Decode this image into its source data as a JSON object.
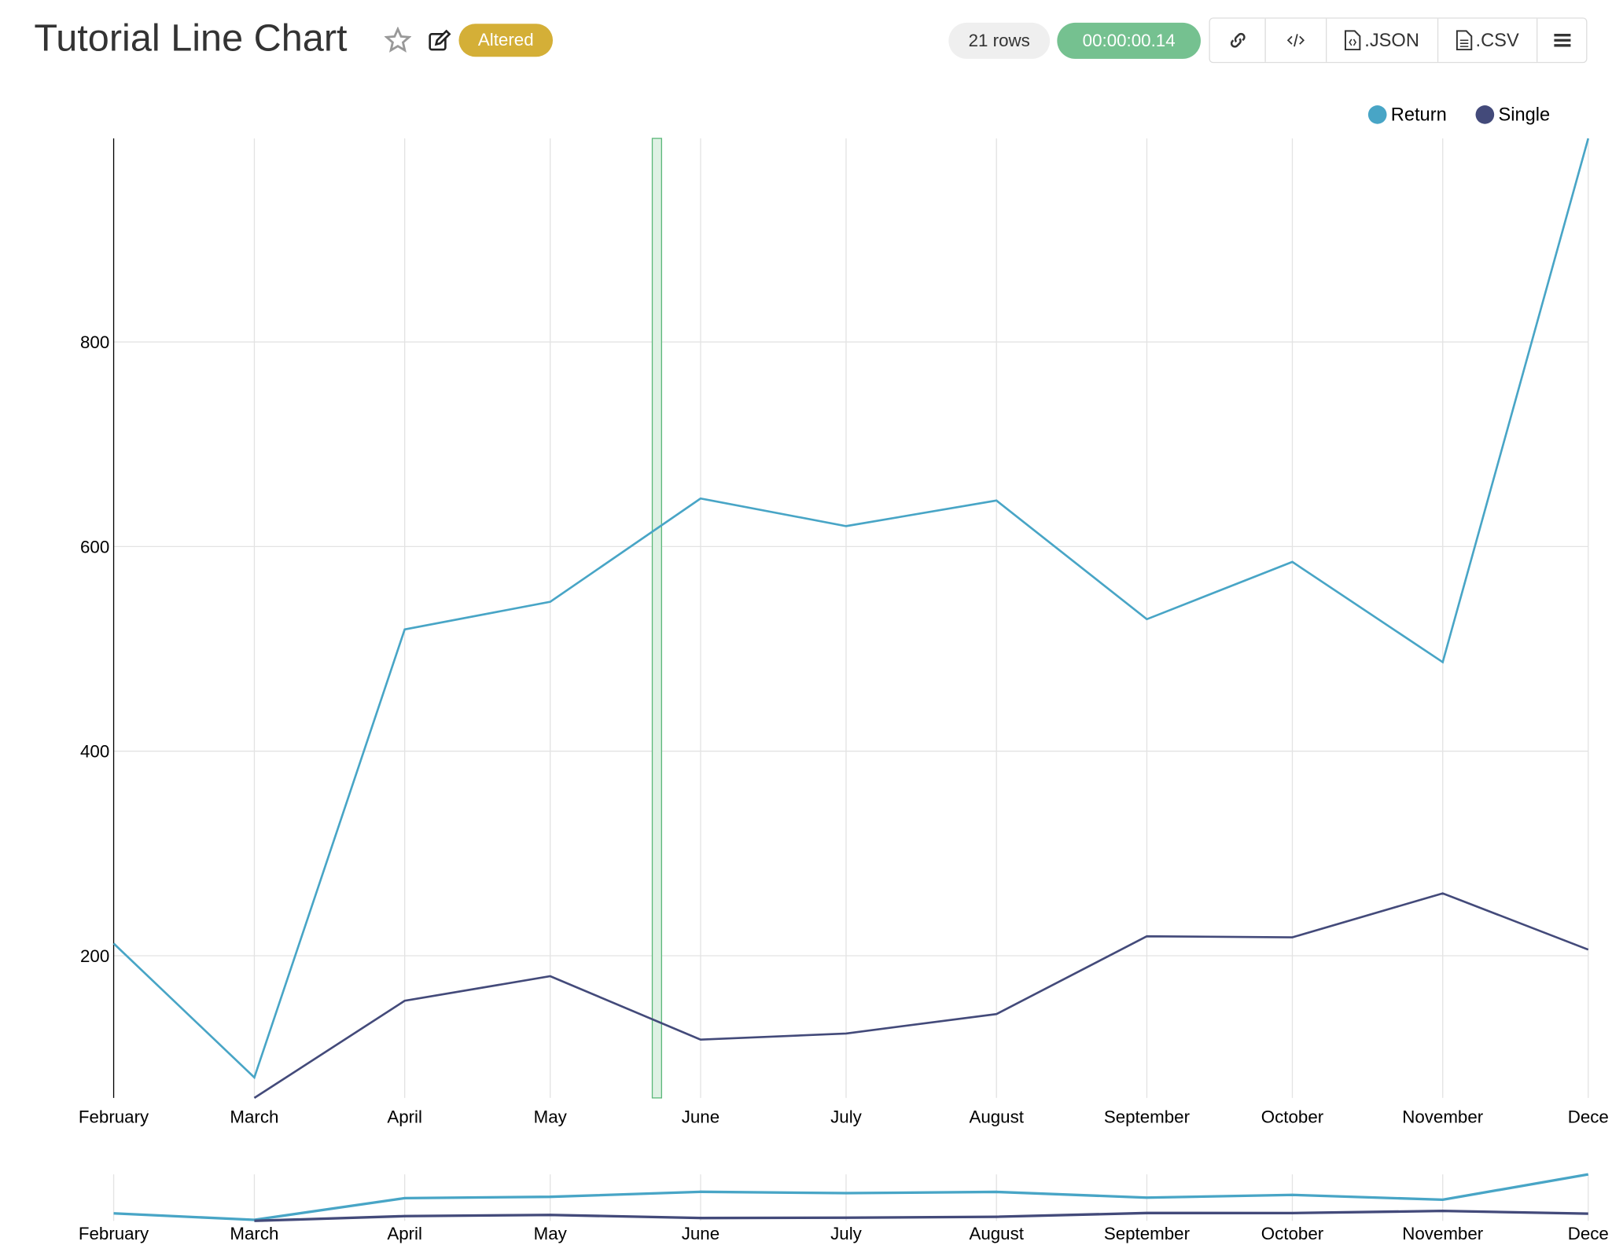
{
  "header": {
    "title": "Tutorial Line Chart",
    "status_badge": "Altered",
    "row_count": "21 rows",
    "query_time": "00:00:00.14",
    "json_label": ".JSON",
    "csv_label": ".CSV",
    "icons": [
      "star-icon",
      "edit-icon",
      "link-icon",
      "code-icon",
      "file-json-icon",
      "file-csv-icon",
      "menu-icon"
    ]
  },
  "colors": {
    "altered": "#d4af37",
    "time": "#75c190",
    "rows": "#efefef",
    "return": "#48a5c6",
    "single": "#434a7a",
    "brush": "#5cb87a"
  },
  "chart_data": {
    "type": "line",
    "x": [
      "February",
      "March",
      "April",
      "May",
      "June",
      "July",
      "August",
      "September",
      "October",
      "November",
      "December"
    ],
    "x_tick_labels": [
      "February",
      "March",
      "April",
      "May",
      "June",
      "July",
      "August",
      "September",
      "October",
      "November",
      "Dece"
    ],
    "x_dates": [
      "2016-02-01",
      "2016-03-01",
      "2016-04-01",
      "2016-05-01",
      "2016-06-01",
      "2016-07-01",
      "2016-08-01",
      "2016-09-01",
      "2016-10-01",
      "2016-11-01",
      "2016-12-01"
    ],
    "series": [
      {
        "name": "Return",
        "values": [
          212,
          81,
          519,
          546,
          647,
          620,
          645,
          529,
          585,
          487,
          999
        ]
      },
      {
        "name": "Single",
        "values": [
          null,
          61,
          156,
          180,
          118,
          124,
          143,
          219,
          218,
          261,
          206
        ]
      }
    ],
    "y_ticks": [
      200,
      400,
      600,
      800
    ],
    "ylim": [
      61,
      999
    ],
    "grid": true,
    "legend": "top-right",
    "highlight_date": "2016-05-23",
    "has_overview_brush_chart": true
  }
}
